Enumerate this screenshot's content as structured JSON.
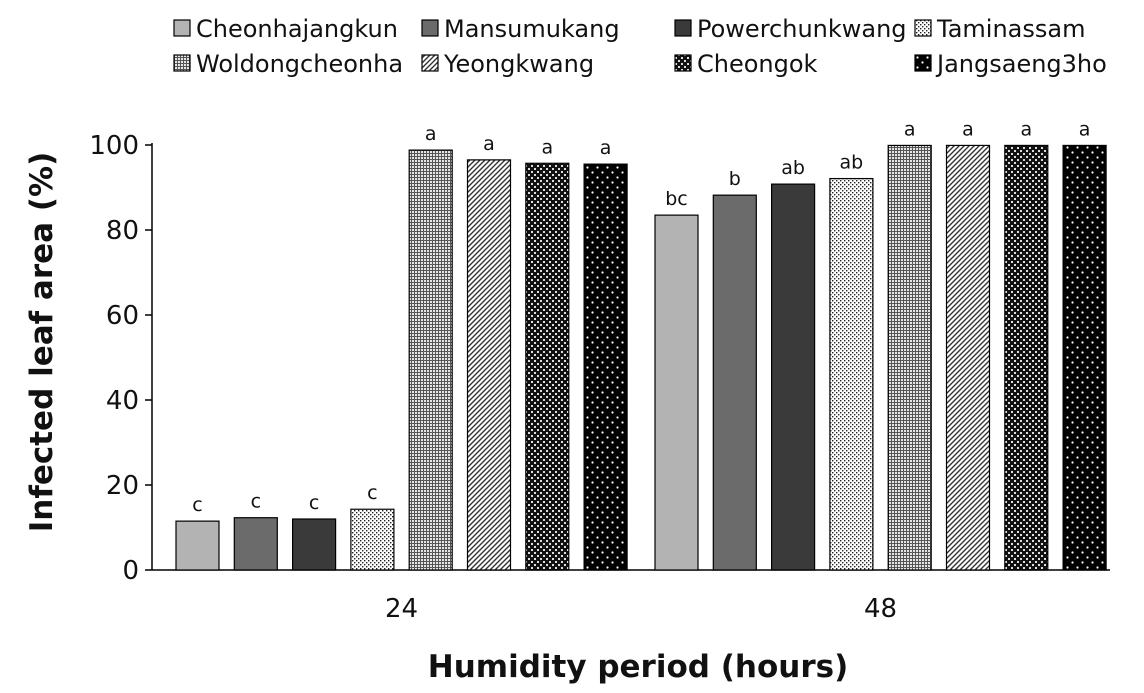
{
  "chart_data": {
    "type": "bar",
    "xlabel": "Humidity period (hours)",
    "ylabel": "Infected leaf area (%)",
    "ylim": [
      0,
      100
    ],
    "yticks": [
      0,
      20,
      40,
      60,
      80,
      100
    ],
    "categories": [
      "24",
      "48"
    ],
    "legend_position": "top",
    "series": [
      {
        "name": "Cheonhajangkun",
        "values": [
          11.5,
          83.5
        ],
        "labels": [
          "c",
          "bc"
        ],
        "pattern": "solid-light",
        "color": "#b3b3b3"
      },
      {
        "name": "Mansumukang",
        "values": [
          12.3,
          88.2
        ],
        "labels": [
          "c",
          "b"
        ],
        "pattern": "solid-mid",
        "color": "#6b6b6b"
      },
      {
        "name": "Powerchunkwang",
        "values": [
          12.0,
          90.8
        ],
        "labels": [
          "c",
          "ab"
        ],
        "pattern": "solid-dark",
        "color": "#3a3a3a"
      },
      {
        "name": "Taminassam",
        "values": [
          14.3,
          92.1
        ],
        "labels": [
          "c",
          "ab"
        ],
        "pattern": "fine-dots",
        "color": "#ffffff"
      },
      {
        "name": "Woldongcheonha",
        "values": [
          98.8,
          99.9
        ],
        "labels": [
          "a",
          "a"
        ],
        "pattern": "dense-grid",
        "color": "#9a9a9a"
      },
      {
        "name": "Yeongkwang",
        "values": [
          96.5,
          99.9
        ],
        "labels": [
          "a",
          "a"
        ],
        "pattern": "diagonal",
        "color": "#ffffff"
      },
      {
        "name": "Cheongok",
        "values": [
          95.7,
          99.9
        ],
        "labels": [
          "a",
          "a"
        ],
        "pattern": "checker",
        "color": "#1a1a1a"
      },
      {
        "name": "Jangsaeng3ho",
        "values": [
          95.5,
          99.9
        ],
        "labels": [
          "a",
          "a"
        ],
        "pattern": "white-dots-black",
        "color": "#000000"
      }
    ]
  }
}
